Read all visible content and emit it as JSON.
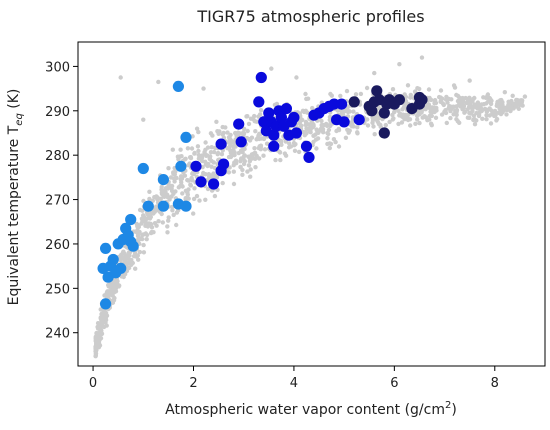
{
  "chart_data": {
    "type": "scatter",
    "title": "TIGR75 atmospheric profiles",
    "xlabel": {
      "main": "Atmospheric water vapor content (g/cm",
      "sup": "2",
      "tail": ")"
    },
    "ylabel": {
      "main": "Equivalent temperature T",
      "sub": "eq",
      "tail": " (K)"
    },
    "xlim": [
      -0.3,
      9.0
    ],
    "ylim": [
      232.5,
      305.5
    ],
    "xticks": [
      0,
      2,
      4,
      6,
      8
    ],
    "yticks": [
      240,
      250,
      260,
      270,
      280,
      290,
      300
    ],
    "grid": false,
    "legend": "none",
    "background_cloud": {
      "color": "#cccccc",
      "shape": [
        {
          "x": 0.05,
          "lo": 233.5,
          "hi": 240.0
        },
        {
          "x": 0.15,
          "lo": 236.0,
          "hi": 246.0
        },
        {
          "x": 0.3,
          "lo": 242.0,
          "hi": 254.0
        },
        {
          "x": 0.5,
          "lo": 248.0,
          "hi": 260.0
        },
        {
          "x": 0.8,
          "lo": 253.0,
          "hi": 266.0
        },
        {
          "x": 1.2,
          "lo": 258.0,
          "hi": 276.0
        },
        {
          "x": 1.6,
          "lo": 261.0,
          "hi": 283.0
        },
        {
          "x": 2.0,
          "lo": 265.0,
          "hi": 287.0
        },
        {
          "x": 2.6,
          "lo": 270.0,
          "hi": 290.0
        },
        {
          "x": 3.2,
          "lo": 274.0,
          "hi": 292.0
        },
        {
          "x": 4.0,
          "lo": 278.0,
          "hi": 294.0
        },
        {
          "x": 5.0,
          "lo": 281.0,
          "hi": 296.0
        },
        {
          "x": 6.0,
          "lo": 284.0,
          "hi": 297.0
        },
        {
          "x": 7.0,
          "lo": 285.0,
          "hi": 297.0
        },
        {
          "x": 8.0,
          "lo": 287.0,
          "hi": 294.0
        },
        {
          "x": 8.6,
          "lo": 290.0,
          "hi": 294.0
        }
      ],
      "outliers": [
        {
          "x": 0.55,
          "y": 297.5
        },
        {
          "x": 1.3,
          "y": 296.5
        },
        {
          "x": 1.0,
          "y": 288.0
        },
        {
          "x": 3.55,
          "y": 299.5
        },
        {
          "x": 4.05,
          "y": 297.5
        },
        {
          "x": 6.1,
          "y": 300.5
        },
        {
          "x": 6.55,
          "y": 302.0
        },
        {
          "x": 8.2,
          "y": 294.2
        },
        {
          "x": 8.6,
          "y": 293.2
        },
        {
          "x": 7.5,
          "y": 296.8
        },
        {
          "x": 5.6,
          "y": 298.5
        },
        {
          "x": 2.2,
          "y": 295.0
        }
      ]
    },
    "series": [
      {
        "color": "#1e88e5",
        "points": [
          [
            0.25,
            246.5
          ],
          [
            0.2,
            254.5
          ],
          [
            0.25,
            259.0
          ],
          [
            0.3,
            252.5
          ],
          [
            0.35,
            255.0
          ],
          [
            0.4,
            256.5
          ],
          [
            0.45,
            253.5
          ],
          [
            0.5,
            260.0
          ],
          [
            0.55,
            254.5
          ],
          [
            0.6,
            261.0
          ],
          [
            0.65,
            263.5
          ],
          [
            0.7,
            262.0
          ],
          [
            0.75,
            265.5
          ],
          [
            0.75,
            260.5
          ],
          [
            0.8,
            259.5
          ],
          [
            1.0,
            277.0
          ],
          [
            1.1,
            268.5
          ],
          [
            1.4,
            274.5
          ],
          [
            1.4,
            268.5
          ],
          [
            1.7,
            269.0
          ],
          [
            1.75,
            277.5
          ],
          [
            1.85,
            268.5
          ],
          [
            1.85,
            284.0
          ],
          [
            1.7,
            295.5
          ]
        ]
      },
      {
        "color": "#0a0adc",
        "points": [
          [
            2.05,
            277.5
          ],
          [
            2.15,
            274.0
          ],
          [
            2.4,
            273.5
          ],
          [
            2.55,
            276.5
          ],
          [
            2.6,
            278.0
          ],
          [
            2.55,
            282.5
          ],
          [
            2.9,
            287.0
          ],
          [
            2.95,
            283.0
          ],
          [
            3.3,
            292.0
          ],
          [
            3.35,
            297.5
          ],
          [
            3.4,
            287.5
          ],
          [
            3.45,
            285.5
          ],
          [
            3.5,
            289.5
          ],
          [
            3.55,
            287.5
          ],
          [
            3.6,
            284.5
          ],
          [
            3.6,
            282.0
          ],
          [
            3.65,
            286.5
          ],
          [
            3.7,
            290.0
          ],
          [
            3.75,
            288.5
          ],
          [
            3.8,
            286.5
          ],
          [
            3.85,
            290.5
          ],
          [
            3.9,
            284.5
          ],
          [
            3.95,
            287.5
          ],
          [
            4.0,
            288.5
          ],
          [
            4.05,
            285.0
          ],
          [
            4.25,
            282.0
          ],
          [
            4.3,
            279.5
          ],
          [
            4.4,
            289.0
          ],
          [
            4.5,
            289.5
          ],
          [
            4.6,
            290.5
          ],
          [
            4.7,
            291.0
          ],
          [
            4.8,
            291.5
          ],
          [
            4.85,
            288.0
          ],
          [
            4.95,
            291.5
          ],
          [
            5.0,
            287.5
          ],
          [
            5.3,
            288.0
          ]
        ]
      },
      {
        "color": "#1a1a5e",
        "points": [
          [
            5.2,
            292.0
          ],
          [
            5.5,
            291.0
          ],
          [
            5.6,
            292.0
          ],
          [
            5.65,
            294.5
          ],
          [
            5.7,
            292.5
          ],
          [
            5.8,
            285.0
          ],
          [
            5.8,
            289.5
          ],
          [
            5.85,
            291.5
          ],
          [
            5.9,
            292.5
          ],
          [
            6.0,
            291.5
          ],
          [
            6.1,
            292.5
          ],
          [
            6.35,
            290.5
          ],
          [
            6.5,
            293.0
          ],
          [
            6.5,
            291.5
          ],
          [
            6.55,
            292.5
          ],
          [
            5.55,
            290.0
          ]
        ]
      }
    ]
  }
}
